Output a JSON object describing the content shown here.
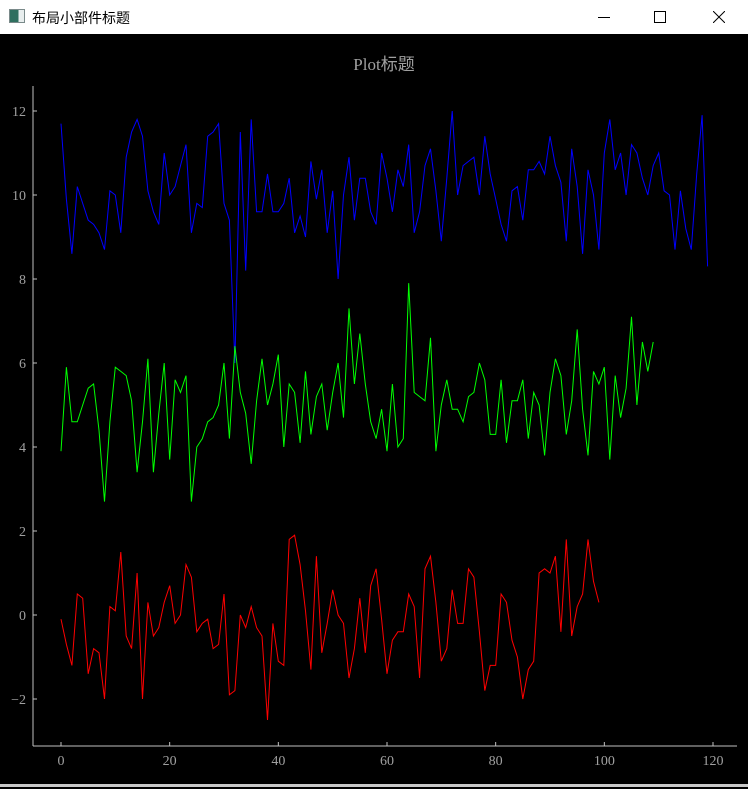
{
  "window": {
    "title": "布局小部件标题",
    "icon": "app-window-icon",
    "controls": {
      "minimize": "minimize-icon",
      "maximize": "maximize-icon",
      "close": "close-icon"
    }
  },
  "plot": {
    "title": "Plot标题",
    "background": "#000000",
    "axis_color": "#c0c0c0",
    "tick_label_color": "#a0a0a0",
    "title_color": "#a0a0a0"
  },
  "chart_data": {
    "type": "line",
    "title": "Plot标题",
    "xlabel": "",
    "ylabel": "",
    "xlim": [
      -5,
      125
    ],
    "ylim": [
      -3.1,
      12.6
    ],
    "xticks": [
      0,
      20,
      40,
      60,
      80,
      100,
      120
    ],
    "yticks": [
      -2,
      0,
      2,
      4,
      6,
      8,
      10,
      12
    ],
    "grid": false,
    "legend": null,
    "series": [
      {
        "name": "blue",
        "color": "#0000ff",
        "x_start": 0,
        "values": [
          11.7,
          9.9,
          8.6,
          10.2,
          9.8,
          9.4,
          9.3,
          9.1,
          8.7,
          10.1,
          10.0,
          9.1,
          10.9,
          11.5,
          11.8,
          11.4,
          10.1,
          9.6,
          9.3,
          11.0,
          10.0,
          10.2,
          10.7,
          11.2,
          9.1,
          9.8,
          9.7,
          11.4,
          11.5,
          11.7,
          9.8,
          9.4,
          6.0,
          11.5,
          8.2,
          11.8,
          9.6,
          9.6,
          10.5,
          9.6,
          9.6,
          9.8,
          10.4,
          9.1,
          9.5,
          9.0,
          10.8,
          9.9,
          10.6,
          9.1,
          10.1,
          8.0,
          10.0,
          10.9,
          9.4,
          10.4,
          10.4,
          9.6,
          9.3,
          11.0,
          10.4,
          9.6,
          10.6,
          10.2,
          11.2,
          9.1,
          9.6,
          10.7,
          11.1,
          10.1,
          8.9,
          10.4,
          12.0,
          10.0,
          10.7,
          10.8,
          10.9,
          10.0,
          11.4,
          10.5,
          9.9,
          9.3,
          8.9,
          10.1,
          10.2,
          9.4,
          10.6,
          10.6,
          10.8,
          10.5,
          11.4,
          10.7,
          10.3,
          8.9,
          11.1,
          10.2,
          8.6,
          10.6,
          10.0,
          8.7,
          11.0,
          11.8,
          10.6,
          11.0,
          10.0,
          11.2,
          11.0,
          10.4,
          10.0,
          10.7,
          11.0,
          10.1,
          10.0,
          8.7,
          10.1,
          9.2,
          8.7,
          10.5,
          11.9,
          8.3
        ]
      },
      {
        "name": "green",
        "color": "#00ff00",
        "x_start": 0,
        "values": [
          3.9,
          5.9,
          4.6,
          4.6,
          5.0,
          5.4,
          5.5,
          4.4,
          2.7,
          4.6,
          5.9,
          5.8,
          5.7,
          5.1,
          3.4,
          4.6,
          6.1,
          3.4,
          4.8,
          6.0,
          3.7,
          5.6,
          5.3,
          5.7,
          2.7,
          4.0,
          4.2,
          4.6,
          4.7,
          5.0,
          6.0,
          4.2,
          6.4,
          5.3,
          4.8,
          3.6,
          5.1,
          6.1,
          5.0,
          5.5,
          6.2,
          4.0,
          5.5,
          5.3,
          4.1,
          5.8,
          4.3,
          5.2,
          5.5,
          4.4,
          5.3,
          6.0,
          4.7,
          7.3,
          5.5,
          6.7,
          5.5,
          4.6,
          4.2,
          4.9,
          3.9,
          5.5,
          4.0,
          4.2,
          7.9,
          5.3,
          5.2,
          5.1,
          6.6,
          3.9,
          5.0,
          5.6,
          4.9,
          4.9,
          4.6,
          5.2,
          5.3,
          6.0,
          5.6,
          4.3,
          4.3,
          5.6,
          4.1,
          5.1,
          5.1,
          5.6,
          4.2,
          5.3,
          5.0,
          3.8,
          5.3,
          6.1,
          5.7,
          4.3,
          5.1,
          6.8,
          4.9,
          3.8,
          5.8,
          5.5,
          5.9,
          3.7,
          5.7,
          4.7,
          5.4,
          7.1,
          5.0,
          6.5,
          5.8,
          6.5
        ]
      },
      {
        "name": "red",
        "color": "#ff0000",
        "x_start": 0,
        "values": [
          -0.1,
          -0.7,
          -1.2,
          0.5,
          0.4,
          -1.4,
          -0.8,
          -0.9,
          -2.0,
          0.2,
          0.1,
          1.5,
          -0.5,
          -0.8,
          1.0,
          -2.0,
          0.3,
          -0.5,
          -0.3,
          0.3,
          0.7,
          -0.2,
          0.0,
          1.2,
          0.9,
          -0.4,
          -0.2,
          -0.1,
          -0.8,
          -0.7,
          0.5,
          -1.9,
          -1.8,
          0.0,
          -0.3,
          0.2,
          -0.3,
          -0.5,
          -2.5,
          -0.2,
          -1.1,
          -1.2,
          1.8,
          1.9,
          1.2,
          0.1,
          -1.3,
          1.4,
          -0.9,
          -0.2,
          0.6,
          0.0,
          -0.2,
          -1.5,
          -0.8,
          0.4,
          -0.9,
          0.7,
          1.1,
          -0.1,
          -1.4,
          -0.6,
          -0.4,
          -0.4,
          0.5,
          0.2,
          -1.5,
          1.1,
          1.4,
          0.3,
          -1.1,
          -0.8,
          0.6,
          -0.2,
          -0.2,
          1.1,
          0.9,
          -0.4,
          -1.8,
          -1.2,
          -1.2,
          0.5,
          0.3,
          -0.6,
          -1.0,
          -2.0,
          -1.3,
          -1.1,
          1.0,
          1.1,
          1.0,
          1.4,
          -0.4,
          1.8,
          -0.5,
          0.2,
          0.5,
          1.8,
          0.8,
          0.3
        ]
      }
    ]
  }
}
